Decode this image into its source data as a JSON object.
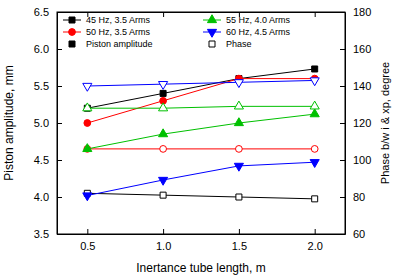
{
  "chart_data": {
    "type": "line",
    "x_label": "Inertance tube length, m",
    "y_label": "Piston amplitude, mm",
    "y2_label": "Phase b/w i & xp, degree",
    "x": [
      0.5,
      1.0,
      1.5,
      2.0
    ],
    "xlim": [
      0.3,
      2.2
    ],
    "xticks": [
      {
        "value": 0.5,
        "label": "0.5"
      },
      {
        "value": 1.0,
        "label": "1.0"
      },
      {
        "value": 1.5,
        "label": "1.5"
      },
      {
        "value": 2.0,
        "label": "2.0"
      }
    ],
    "ylim": [
      3.5,
      6.5
    ],
    "yticks": [
      3.5,
      {
        "value": 4,
        "label": "4.0"
      },
      4.5,
      {
        "value": 5,
        "label": "5.0"
      },
      5.5,
      {
        "value": 6,
        "label": "6.0"
      },
      6.5
    ],
    "y2lim": [
      60,
      180
    ],
    "y2ticks": [
      60,
      80,
      100,
      120,
      140,
      160,
      180
    ],
    "legend": "upper left",
    "series": [
      {
        "name": "45 Hz, 3.5 Arms",
        "color": "#000000",
        "marker": "square",
        "values": [
          5.2,
          5.4,
          5.6,
          5.73
        ],
        "phase": [
          82,
          81,
          80,
          79
        ]
      },
      {
        "name": "50 Hz, 3.5 Arms",
        "color": "#ff0000",
        "marker": "circle",
        "values": [
          5.0,
          5.3,
          5.6,
          5.6
        ],
        "phase": [
          106,
          106,
          106,
          106
        ]
      },
      {
        "name": "55 Hz, 4.0 Arms",
        "color": "#00c000",
        "marker": "triangle-up",
        "values": [
          4.65,
          4.85,
          5.0,
          5.12
        ],
        "phase": [
          128,
          128,
          129,
          129
        ]
      },
      {
        "name": "60 Hz, 4.5 Arms",
        "color": "#0000ff",
        "marker": "triangle-down",
        "values": [
          4.02,
          4.23,
          4.42,
          4.47
        ],
        "phase": [
          140,
          141,
          142,
          143
        ]
      }
    ],
    "style_legend": [
      {
        "name": "Piston amplitude",
        "marker": "filled"
      },
      {
        "name": "Phase",
        "marker": "open"
      }
    ]
  }
}
